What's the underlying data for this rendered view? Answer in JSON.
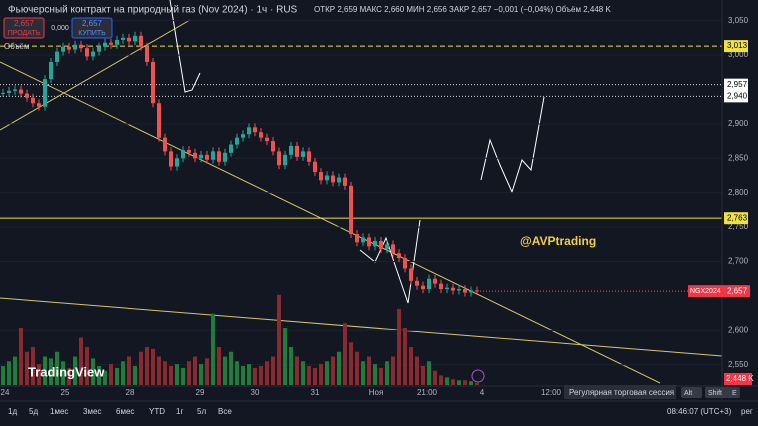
{
  "header": {
    "symbol_title": "Фьючерсный контракт на природный газ (Nov 2024) · 1ч · RUS",
    "ohlc": "ОТКР 2,659 МАКС 2,660 МИН 2,656 ЗАКР 2,657 −0,001 (−0,04%) Объём 2,448 K",
    "sell_price": "2,657",
    "sell_label": "ПРОДАТЬ",
    "spread": "0,000",
    "buy_price": "2,657",
    "buy_label": "КУПИТЬ",
    "volume_label": "Объём"
  },
  "chart_data": {
    "type": "candlestick",
    "closes": [
      2945,
      2948,
      2950,
      2944,
      2938,
      2930,
      2925,
      2965,
      2990,
      3005,
      3012,
      3008,
      3015,
      3010,
      2998,
      3005,
      3012,
      3018,
      3015,
      3022,
      3025,
      3020,
      3028,
      3012,
      2990,
      2930,
      2880,
      2860,
      2838,
      2850,
      2862,
      2858,
      2850,
      2855,
      2848,
      2860,
      2845,
      2858,
      2870,
      2880,
      2885,
      2895,
      2888,
      2880,
      2875,
      2860,
      2840,
      2855,
      2868,
      2852,
      2860,
      2845,
      2830,
      2818,
      2825,
      2815,
      2822,
      2810,
      2740,
      2728,
      2735,
      2722,
      2730,
      2718,
      2725,
      2712,
      2705,
      2690,
      2672,
      2665,
      2660,
      2675,
      2668,
      2660,
      2662,
      2658,
      2660,
      2655,
      2658,
      2657
    ],
    "volumes": [
      20,
      25,
      30,
      60,
      35,
      40,
      22,
      30,
      28,
      35,
      25,
      18,
      30,
      50,
      40,
      28,
      20,
      15,
      22,
      18,
      25,
      30,
      20,
      35,
      40,
      38,
      30,
      25,
      20,
      22,
      18,
      25,
      30,
      22,
      28,
      75,
      40,
      30,
      35,
      25,
      20,
      22,
      18,
      20,
      25,
      30,
      95,
      60,
      40,
      30,
      25,
      20,
      18,
      22,
      25,
      30,
      35,
      65,
      45,
      35,
      25,
      30,
      22,
      18,
      25,
      30,
      80,
      60,
      40,
      30,
      20,
      25,
      15,
      10,
      8,
      6,
      5,
      5,
      4,
      2.448
    ],
    "ylim": [
      2525,
      3080
    ],
    "vlim": [
      0,
      100
    ],
    "yticks": [
      {
        "value": 3050,
        "label": "3,050"
      },
      {
        "value": 3000,
        "label": "3,000"
      },
      {
        "value": 2900,
        "label": "2,900"
      },
      {
        "value": 2850,
        "label": "2,850"
      },
      {
        "value": 2800,
        "label": "2,800"
      },
      {
        "value": 2750,
        "label": "2,750"
      },
      {
        "value": 2700,
        "label": "2,700"
      },
      {
        "value": 2600,
        "label": "2,600"
      },
      {
        "value": 2550,
        "label": "2,550"
      }
    ],
    "levels": [
      {
        "value": 3013,
        "label": "3,013"
      },
      {
        "value": 2957,
        "label": "2,957"
      },
      {
        "value": 2940,
        "label": "2,940"
      },
      {
        "value": 2763,
        "label": "2,763"
      }
    ],
    "last_price": {
      "value": 2657,
      "label": "2,657",
      "name": "NGX2024"
    },
    "last_volume": "2,448 K",
    "xtick_labels": [
      "24",
      "25",
      "28",
      "29",
      "30",
      "31",
      "Ноя",
      "21:00",
      "4",
      "12:00"
    ],
    "annotation": "@AVPtrading",
    "logo": "TradingView"
  },
  "footer": {
    "ranges": [
      "1д",
      "5д",
      "1мес",
      "3мес",
      "6мес",
      "YTD",
      "1г",
      "5л",
      "Все"
    ],
    "session": "Регулярная торговая сессия",
    "shortcut": [
      "Alt",
      "Shift",
      "E"
    ],
    "clock": "08:46:07 (UTC+3)",
    "mode": "рег"
  }
}
